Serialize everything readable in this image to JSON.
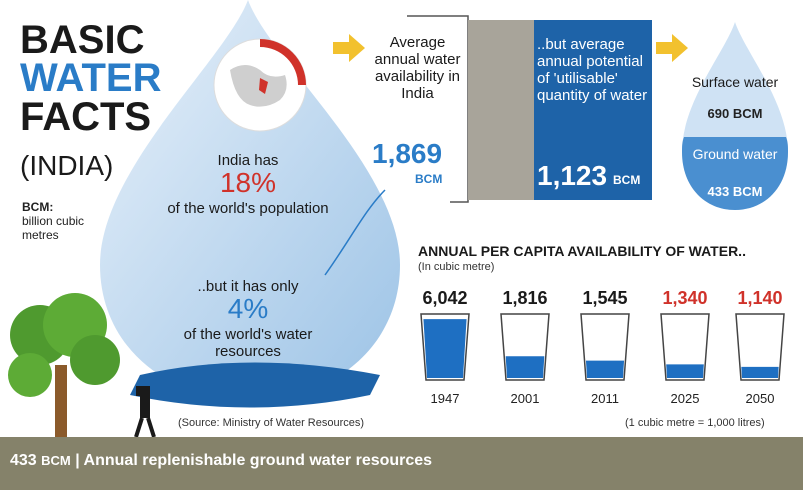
{
  "title": {
    "line1": "BASIC",
    "line2": "WATER",
    "line3": "FACTS",
    "line4": "(INDIA)"
  },
  "legend": {
    "bcm_key": "BCM:",
    "bcm_def": "billion cubic metres"
  },
  "drop": {
    "india_has": "India has",
    "pct_population": "18%",
    "world_population": "of the world's population",
    "but_only": "..but it has only",
    "pct_water": "4%",
    "world_water": "of the world's water resources",
    "source": "(Source: Ministry of Water Resources)"
  },
  "availability": {
    "text": "Average annual water availability in India",
    "value": "1,869",
    "unit": "BCM",
    "utilisable_text": "..but average annual potential of 'utilisable' quantity of water",
    "utilisable_value": "1,123",
    "utilisable_unit": "BCM",
    "surface_label": "Surface water",
    "surface_value": "690 BCM",
    "ground_label": "Ground water",
    "ground_value": "433 BCM"
  },
  "per_capita": {
    "title": "ANNUAL PER CAPITA AVAILABILITY OF WATER..",
    "unit": "(In cubic metre)",
    "note": "(1 cubic metre = 1,000 litres)",
    "glasses": [
      {
        "year": "1947",
        "value": "6,042",
        "fill": 0.95,
        "color": "#1a1a1a"
      },
      {
        "year": "2001",
        "value": "1,816",
        "fill": 0.35,
        "color": "#1a1a1a"
      },
      {
        "year": "2011",
        "value": "1,545",
        "fill": 0.28,
        "color": "#1a1a1a"
      },
      {
        "year": "2025",
        "value": "1,340",
        "fill": 0.22,
        "color": "#d0322a"
      },
      {
        "year": "2050",
        "value": "1,140",
        "fill": 0.18,
        "color": "#d0322a"
      }
    ]
  },
  "bottom": {
    "value": "433",
    "unit": "BCM",
    "text": "| Annual replenishable ground water resources"
  },
  "colors": {
    "accent_blue": "#2a7cc7",
    "dark_blue": "#1e63a8",
    "red": "#d0322a",
    "gray": "#a8a49a",
    "bar": "#85826a"
  }
}
